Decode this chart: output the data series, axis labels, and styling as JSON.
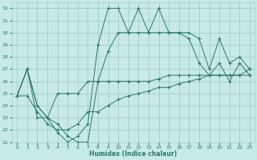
{
  "xlabel": "Humidex (Indice chaleur)",
  "xlim": [
    -0.5,
    23.5
  ],
  "ylim": [
    21,
    32.5
  ],
  "yticks": [
    21,
    22,
    23,
    24,
    25,
    26,
    27,
    28,
    29,
    30,
    31,
    32
  ],
  "xticks": [
    0,
    1,
    2,
    3,
    4,
    5,
    6,
    7,
    8,
    9,
    10,
    11,
    12,
    13,
    14,
    15,
    16,
    17,
    18,
    19,
    20,
    21,
    22,
    23
  ],
  "bg_color": "#c8eae4",
  "grid_color": "#a0cfc5",
  "line_color": "#2a7a6a",
  "series": [
    [
      24.8,
      27.0,
      24.0,
      23.0,
      21.8,
      21.0,
      21.5,
      22.5,
      29.0,
      32.0,
      32.0,
      30.0,
      32.0,
      30.0,
      32.0,
      30.0,
      30.0,
      30.0,
      29.5,
      27.0,
      29.5,
      27.5,
      28.0,
      27.0
    ],
    [
      24.8,
      27.0,
      24.0,
      23.0,
      22.5,
      21.5,
      21.0,
      21.0,
      26.0,
      28.5,
      30.0,
      30.0,
      30.0,
      30.0,
      30.0,
      30.0,
      30.0,
      29.5,
      27.5,
      26.5,
      27.5,
      26.0,
      27.5,
      26.5
    ],
    [
      24.8,
      27.0,
      23.0,
      23.0,
      25.0,
      25.0,
      25.0,
      26.0,
      26.0,
      26.0,
      26.0,
      26.0,
      26.0,
      26.0,
      26.2,
      26.5,
      26.5,
      26.5,
      26.5,
      26.5,
      26.5,
      26.5,
      26.5,
      27.0
    ],
    [
      24.8,
      24.8,
      23.5,
      22.5,
      22.0,
      22.0,
      22.5,
      23.5,
      23.5,
      24.0,
      24.5,
      24.8,
      25.0,
      25.2,
      25.5,
      25.5,
      25.8,
      26.0,
      26.2,
      26.5,
      26.5,
      26.5,
      26.5,
      26.5
    ]
  ]
}
